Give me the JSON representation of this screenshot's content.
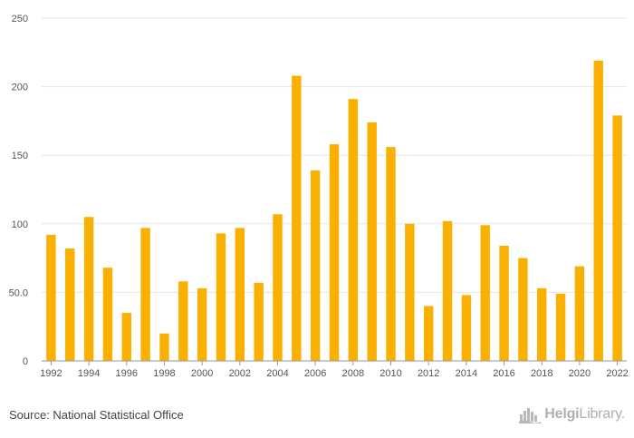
{
  "chart_data": {
    "type": "bar",
    "title": "",
    "xlabel": "",
    "ylabel": "",
    "ylim": [
      0,
      250
    ],
    "yticks": [
      0,
      50,
      100,
      150,
      200,
      250
    ],
    "ytick_labels": [
      "0",
      "50.0",
      "100",
      "150",
      "200",
      "250"
    ],
    "categories": [
      "1992",
      "1993",
      "1994",
      "1995",
      "1996",
      "1997",
      "1998",
      "1999",
      "2000",
      "2001",
      "2002",
      "2003",
      "2004",
      "2005",
      "2006",
      "2007",
      "2008",
      "2009",
      "2010",
      "2011",
      "2012",
      "2013",
      "2014",
      "2015",
      "2016",
      "2017",
      "2018",
      "2019",
      "2020",
      "2021",
      "2022"
    ],
    "xtick_labels": [
      "1992",
      "1994",
      "1996",
      "1998",
      "2000",
      "2002",
      "2004",
      "2006",
      "2008",
      "2010",
      "2012",
      "2014",
      "2016",
      "2018",
      "2020",
      "2022"
    ],
    "values": [
      92,
      82,
      105,
      68,
      35,
      97,
      20,
      58,
      53,
      93,
      97,
      57,
      107,
      208,
      139,
      158,
      191,
      174,
      156,
      100,
      40,
      102,
      48,
      99,
      84,
      75,
      53,
      49,
      69,
      219,
      179
    ],
    "bar_color": "#F9B000",
    "grid": true,
    "legend": "none"
  },
  "footer": {
    "source": "Source: National Statistical Office",
    "brand_name_bold": "Helgi",
    "brand_name_light": "Library."
  },
  "brand_icon": "city-skyline-icon"
}
